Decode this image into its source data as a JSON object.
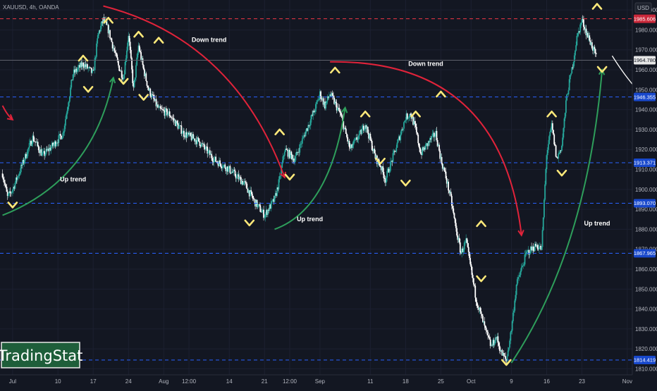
{
  "header": {
    "symbol": "XAUUSD, 4h, OANDA",
    "currency": "USD"
  },
  "branding": {
    "logo_text": "TradingStat"
  },
  "colors": {
    "background": "#131722",
    "up": "#26a69a",
    "down": "#ffffff",
    "level": "#2962ff",
    "resistance": "#f23645",
    "arrow_up": "#2e9e5b",
    "arrow_down": "#e0233a",
    "chevron": "#ffe97a"
  },
  "chart_data": {
    "type": "candlestick",
    "ylim": [
      1807,
      1995
    ],
    "y_ticks": [
      1810,
      1820,
      1830,
      1840,
      1850,
      1860,
      1870,
      1880,
      1890,
      1900,
      1910,
      1920,
      1930,
      1940,
      1950,
      1960,
      1970,
      1980,
      1990
    ],
    "y_tick_labels": [
      "1810.000",
      "1820.000",
      "1830.000",
      "1840.000",
      "1850.000",
      "1860.000",
      "1870.000",
      "1880.000",
      "1890.000",
      "1900.000",
      "1910.000",
      "1920.000",
      "1930.000",
      "1940.000",
      "1950.000",
      "1960.000",
      "1970.000",
      "1980.000",
      "1990.000"
    ],
    "x_ticks": [
      {
        "label": "Jul",
        "day": 1
      },
      {
        "label": "10",
        "day": 10
      },
      {
        "label": "17",
        "day": 17
      },
      {
        "label": "24",
        "day": 24
      },
      {
        "label": "Aug",
        "day": 31
      },
      {
        "label": "12:00",
        "day": 36
      },
      {
        "label": "14",
        "day": 44
      },
      {
        "label": "21",
        "day": 51
      },
      {
        "label": "12:00",
        "day": 56
      },
      {
        "label": "Sep",
        "day": 62
      },
      {
        "label": "11",
        "day": 72
      },
      {
        "label": "18",
        "day": 79
      },
      {
        "label": "25",
        "day": 86
      },
      {
        "label": "Oct",
        "day": 92
      },
      {
        "label": "9",
        "day": 100
      },
      {
        "label": "16",
        "day": 107
      },
      {
        "label": "23",
        "day": 114
      },
      {
        "label": "Nov",
        "day": 123
      }
    ],
    "price_path": [
      {
        "day": -1,
        "price": 1908
      },
      {
        "day": 0,
        "price": 1896
      },
      {
        "day": 1,
        "price": 1900
      },
      {
        "day": 3,
        "price": 1913
      },
      {
        "day": 5,
        "price": 1926
      },
      {
        "day": 7,
        "price": 1917
      },
      {
        "day": 9,
        "price": 1922
      },
      {
        "day": 11,
        "price": 1928
      },
      {
        "day": 13,
        "price": 1958
      },
      {
        "day": 15,
        "price": 1963
      },
      {
        "day": 17,
        "price": 1958
      },
      {
        "day": 18,
        "price": 1978
      },
      {
        "day": 19,
        "price": 1985
      },
      {
        "day": 20,
        "price": 1980
      },
      {
        "day": 22,
        "price": 1962
      },
      {
        "day": 23,
        "price": 1956
      },
      {
        "day": 24,
        "price": 1978
      },
      {
        "day": 25,
        "price": 1950
      },
      {
        "day": 26,
        "price": 1972
      },
      {
        "day": 27,
        "price": 1960
      },
      {
        "day": 28,
        "price": 1950
      },
      {
        "day": 30,
        "price": 1940
      },
      {
        "day": 32,
        "price": 1938
      },
      {
        "day": 35,
        "price": 1928
      },
      {
        "day": 38,
        "price": 1924
      },
      {
        "day": 41,
        "price": 1915
      },
      {
        "day": 44,
        "price": 1910
      },
      {
        "day": 47,
        "price": 1903
      },
      {
        "day": 49,
        "price": 1894
      },
      {
        "day": 51,
        "price": 1887
      },
      {
        "day": 53,
        "price": 1895
      },
      {
        "day": 54,
        "price": 1905
      },
      {
        "day": 55,
        "price": 1920
      },
      {
        "day": 57,
        "price": 1915
      },
      {
        "day": 59,
        "price": 1928
      },
      {
        "day": 61,
        "price": 1940
      },
      {
        "day": 62,
        "price": 1948
      },
      {
        "day": 63,
        "price": 1942
      },
      {
        "day": 64,
        "price": 1948
      },
      {
        "day": 66,
        "price": 1938
      },
      {
        "day": 68,
        "price": 1920
      },
      {
        "day": 70,
        "price": 1928
      },
      {
        "day": 71,
        "price": 1933
      },
      {
        "day": 73,
        "price": 1916
      },
      {
        "day": 74,
        "price": 1912
      },
      {
        "day": 75,
        "price": 1905
      },
      {
        "day": 77,
        "price": 1920
      },
      {
        "day": 79,
        "price": 1936
      },
      {
        "day": 80,
        "price": 1938
      },
      {
        "day": 81,
        "price": 1930
      },
      {
        "day": 82,
        "price": 1918
      },
      {
        "day": 84,
        "price": 1925
      },
      {
        "day": 85,
        "price": 1928
      },
      {
        "day": 86,
        "price": 1915
      },
      {
        "day": 87,
        "price": 1906
      },
      {
        "day": 88,
        "price": 1895
      },
      {
        "day": 89,
        "price": 1880
      },
      {
        "day": 90,
        "price": 1868
      },
      {
        "day": 91,
        "price": 1874
      },
      {
        "day": 93,
        "price": 1845
      },
      {
        "day": 95,
        "price": 1828
      },
      {
        "day": 96,
        "price": 1821
      },
      {
        "day": 97,
        "price": 1826
      },
      {
        "day": 98,
        "price": 1818
      },
      {
        "day": 99,
        "price": 1814
      },
      {
        "day": 100,
        "price": 1830
      },
      {
        "day": 101,
        "price": 1852
      },
      {
        "day": 103,
        "price": 1868
      },
      {
        "day": 105,
        "price": 1872
      },
      {
        "day": 106,
        "price": 1870
      },
      {
        "day": 107,
        "price": 1918
      },
      {
        "day": 108,
        "price": 1932
      },
      {
        "day": 109,
        "price": 1915
      },
      {
        "day": 110,
        "price": 1922
      },
      {
        "day": 111,
        "price": 1947
      },
      {
        "day": 112,
        "price": 1960
      },
      {
        "day": 113,
        "price": 1976
      },
      {
        "day": 114,
        "price": 1985
      },
      {
        "day": 115,
        "price": 1978
      },
      {
        "day": 116,
        "price": 1972
      },
      {
        "day": 117,
        "price": 1965
      }
    ],
    "levels": [
      {
        "price": 1985.606,
        "label": "1985.606",
        "style": "resistance"
      },
      {
        "price": 1964.78,
        "label": "1964.780",
        "style": "current"
      },
      {
        "price": 1946.355,
        "label": "1946.355",
        "style": "support"
      },
      {
        "price": 1913.371,
        "label": "1913.371",
        "style": "support"
      },
      {
        "price": 1893.07,
        "label": "1893.070",
        "style": "support"
      },
      {
        "price": 1867.965,
        "label": "1867.965",
        "style": "support"
      },
      {
        "price": 1814.419,
        "label": "1814.419",
        "style": "support"
      }
    ],
    "trend_labels": [
      {
        "text": "Up trend",
        "day": 13,
        "price": 1904
      },
      {
        "text": "Down trend",
        "day": 40,
        "price": 1974
      },
      {
        "text": "Up trend",
        "day": 60,
        "price": 1884
      },
      {
        "text": "Down trend",
        "day": 83,
        "price": 1962
      },
      {
        "text": "Up trend",
        "day": 117,
        "price": 1882
      }
    ],
    "trend_arrows": [
      {
        "kind": "up",
        "from": [
          -1,
          1887
        ],
        "ctrl": [
          17,
          1905
        ],
        "to": [
          21,
          1956
        ]
      },
      {
        "kind": "down",
        "from": [
          19,
          1992
        ],
        "ctrl": [
          45,
          1975
        ],
        "to": [
          55,
          1906
        ]
      },
      {
        "kind": "up",
        "from": [
          53,
          1880
        ],
        "ctrl": [
          64,
          1890
        ],
        "to": [
          67,
          1941
        ]
      },
      {
        "kind": "down",
        "from": [
          64,
          1964
        ],
        "ctrl": [
          98,
          1965
        ],
        "to": [
          102,
          1877
        ]
      },
      {
        "kind": "up",
        "from": [
          100,
          1813
        ],
        "ctrl": [
          115,
          1870
        ],
        "to": [
          118,
          1960
        ]
      },
      {
        "kind": "down",
        "from": [
          -1,
          1942
        ],
        "ctrl": [
          0,
          1937
        ],
        "to": [
          1,
          1935
        ]
      },
      {
        "kind": "projection",
        "from": [
          120,
          1967
        ],
        "ctrl": [
          123,
          1955
        ],
        "to": [
          126,
          1947
        ]
      }
    ],
    "chevrons_up": [
      [
        15,
        1966
      ],
      [
        20,
        1985
      ],
      [
        26,
        1978
      ],
      [
        30,
        1975
      ],
      [
        54,
        1929
      ],
      [
        65,
        1960
      ],
      [
        71,
        1938
      ],
      [
        81,
        1938
      ],
      [
        86,
        1948
      ],
      [
        94,
        1883
      ],
      [
        108,
        1938
      ],
      [
        117,
        1992
      ]
    ],
    "chevrons_down": [
      [
        1,
        1892
      ],
      [
        16,
        1950
      ],
      [
        23,
        1954
      ],
      [
        27,
        1946
      ],
      [
        48,
        1883
      ],
      [
        56,
        1906
      ],
      [
        74,
        1914
      ],
      [
        79,
        1903
      ],
      [
        94,
        1855
      ],
      [
        99,
        1813
      ],
      [
        110,
        1908
      ],
      [
        118,
        1960
      ]
    ]
  }
}
